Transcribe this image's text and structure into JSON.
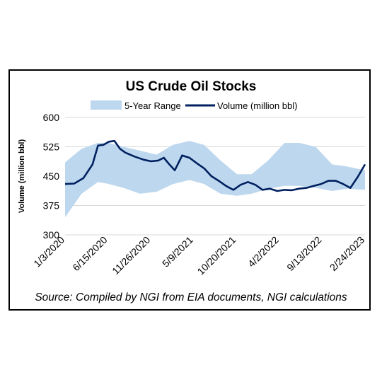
{
  "chart_data": {
    "type": "area",
    "title": "US Crude Oil Stocks",
    "ylabel": "Volume (million bbl)",
    "xlabel": "",
    "ylim": [
      300,
      600
    ],
    "yticks": [
      300,
      375,
      450,
      525,
      600
    ],
    "xtick_labels": [
      "1/3/2020",
      "6/15/2020",
      "11/26/2020",
      "5/9/2021",
      "10/20/2021",
      "4/2/2022",
      "9/13/2022",
      "2/24/2023"
    ],
    "x_range": [
      "2020-01-03",
      "2023-02-24"
    ],
    "grid": "horizontal",
    "legend_position": "top",
    "series": [
      {
        "name": "5-Year Range",
        "kind": "band",
        "color": "#bdd7ee",
        "x": [
          "2020-01-03",
          "2020-03-06",
          "2020-05-08",
          "2020-06-19",
          "2020-08-14",
          "2020-10-16",
          "2020-12-18",
          "2021-02-19",
          "2021-04-23",
          "2021-06-18",
          "2021-08-20",
          "2021-10-22",
          "2021-12-17",
          "2022-02-18",
          "2022-04-22",
          "2022-06-17",
          "2022-08-19",
          "2022-10-21",
          "2022-12-16",
          "2023-02-24"
        ],
        "upper": [
          485,
          520,
          535,
          535,
          525,
          515,
          505,
          530,
          540,
          530,
          490,
          455,
          455,
          490,
          535,
          535,
          525,
          480,
          475,
          465
        ],
        "lower": [
          345,
          405,
          435,
          430,
          420,
          405,
          410,
          430,
          440,
          430,
          405,
          400,
          405,
          418,
          425,
          425,
          420,
          412,
          418,
          415
        ]
      },
      {
        "name": "Volume (million bbl)",
        "kind": "line",
        "color": "#002060",
        "x": [
          "2020-01-03",
          "2020-02-07",
          "2020-03-13",
          "2020-04-17",
          "2020-05-08",
          "2020-05-29",
          "2020-06-19",
          "2020-07-10",
          "2020-07-31",
          "2020-08-21",
          "2020-09-25",
          "2020-10-30",
          "2020-11-27",
          "2020-12-25",
          "2021-01-15",
          "2021-02-05",
          "2021-02-26",
          "2021-03-26",
          "2021-04-23",
          "2021-05-21",
          "2021-06-18",
          "2021-07-16",
          "2021-08-13",
          "2021-09-10",
          "2021-10-08",
          "2021-11-05",
          "2021-12-03",
          "2021-12-31",
          "2022-01-28",
          "2022-02-25",
          "2022-03-25",
          "2022-04-22",
          "2022-05-20",
          "2022-06-17",
          "2022-07-15",
          "2022-08-12",
          "2022-09-09",
          "2022-10-07",
          "2022-11-04",
          "2022-12-02",
          "2022-12-30",
          "2023-01-27",
          "2023-02-24"
        ],
        "values": [
          430,
          431,
          445,
          480,
          528,
          530,
          538,
          540,
          520,
          510,
          500,
          492,
          488,
          490,
          497,
          480,
          465,
          503,
          497,
          483,
          470,
          450,
          438,
          425,
          415,
          428,
          435,
          428,
          415,
          418,
          412,
          415,
          414,
          418,
          420,
          425,
          430,
          438,
          438,
          430,
          420,
          448,
          480
        ]
      }
    ],
    "source": "Source: Compiled by NGI from EIA documents, NGI calculations"
  },
  "colors": {
    "band": "#bdd7ee",
    "line": "#002060",
    "grid": "#d9d9d9"
  }
}
